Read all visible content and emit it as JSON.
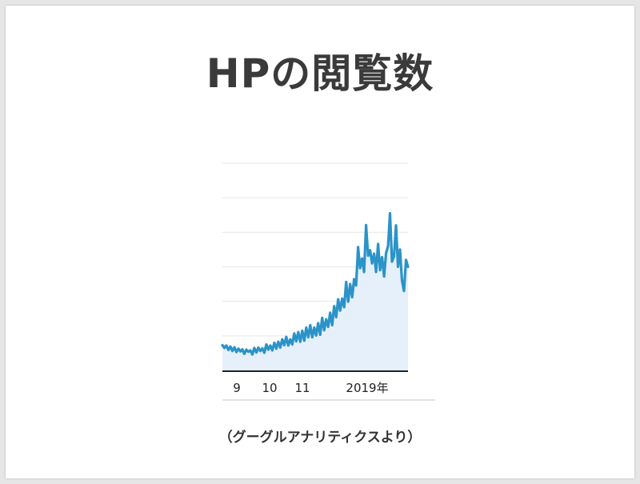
{
  "slide": {
    "title": "HPの閲覧数",
    "source_note": "（グーグルアナリティクスより）"
  },
  "colors": {
    "line": "#2b93c8",
    "area": "#e6f0fa",
    "grid": "#e6e6e6",
    "baseline": "#222222",
    "title": "#3a3a3a"
  },
  "chart_data": {
    "type": "area",
    "title": "",
    "xlabel": "",
    "ylabel": "",
    "x_tick_labels": [
      "9",
      "10",
      "11",
      "2019年"
    ],
    "grid": true,
    "legend": "none",
    "ylim": [
      0,
      60
    ],
    "series": [
      {
        "name": "",
        "values": [
          7.3,
          6.5,
          7.2,
          5.9,
          6.9,
          5.6,
          6.7,
          5.3,
          6.3,
          5.5,
          6.1,
          4.8,
          6.0,
          5.4,
          5.8,
          4.6,
          6.5,
          5.2,
          6.6,
          5.6,
          6.4,
          5.1,
          7.5,
          6.0,
          7.2,
          5.8,
          8.0,
          6.3,
          8.3,
          6.6,
          9.0,
          7.3,
          9.7,
          7.2,
          9.0,
          7.5,
          10.7,
          8.4,
          11.1,
          8.3,
          11.5,
          8.6,
          12.4,
          9.6,
          13.1,
          9.6,
          12.4,
          10.1,
          13.7,
          10.3,
          15.2,
          11.6,
          14.8,
          12.6,
          16.7,
          13.1,
          18.6,
          15.4,
          20.6,
          17.3,
          20.8,
          18.3,
          25.6,
          19.9,
          25.0,
          21.2,
          26.4,
          24.6,
          35.7,
          29.6,
          32.4,
          28.5,
          42.1,
          33.2,
          34.8,
          31.0,
          33.8,
          28.5,
          36.6,
          29.0,
          32.8,
          27.2,
          34.0,
          36.0,
          45.5,
          31.5,
          33.0,
          42.0,
          30.0,
          35.0,
          26.0,
          23.0,
          32.0,
          30.0
        ]
      }
    ]
  }
}
